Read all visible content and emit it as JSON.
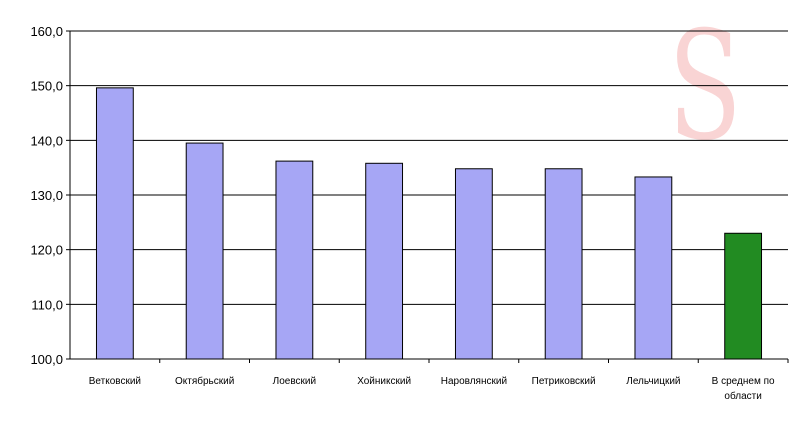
{
  "watermark": "S",
  "colors": {
    "bar": "#a6a6f5",
    "highlight": "#228b22",
    "grid": "#000000"
  },
  "chart_data": {
    "type": "bar",
    "categories": [
      "Ветковский",
      "Октябрьский",
      "Лоевский",
      "Хойникский",
      "Наровлянский",
      "Петриковский",
      "Лельчицкий",
      "В среднем по области"
    ],
    "values": [
      149.6,
      139.5,
      136.2,
      135.8,
      134.8,
      134.8,
      133.3,
      123.0
    ],
    "highlight_index": 7,
    "ylim": [
      100,
      160
    ],
    "yticks": [
      "100,0",
      "110,0",
      "120,0",
      "130,0",
      "140,0",
      "150,0",
      "160,0"
    ],
    "grid": true,
    "title": "",
    "xlabel": "",
    "ylabel": ""
  }
}
